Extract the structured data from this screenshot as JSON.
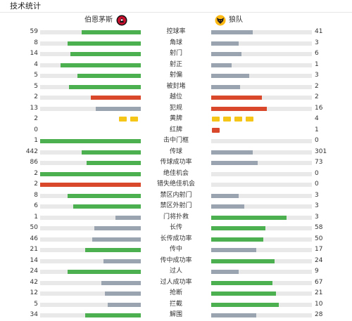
{
  "header": {
    "title": "技术统计"
  },
  "teams": {
    "home": {
      "name": "伯恩茅斯",
      "crest_icon": "bournemouth-crest"
    },
    "away": {
      "name": "狼队",
      "crest_icon": "wolves-crest"
    }
  },
  "colors": {
    "winner": "#4caf50",
    "loser": "#9aa4b1",
    "error": "#d9482b",
    "track": "#e9e9e9",
    "yellow_card": "#f5c518",
    "red_card": "#d9482b"
  },
  "stats": [
    {
      "label": "控球率",
      "home": "59",
      "away": "41",
      "home_frac": 0.59,
      "away_frac": 0.41,
      "home_color": "winner",
      "away_color": "loser"
    },
    {
      "label": "角球",
      "home": "8",
      "away": "3",
      "home_frac": 0.73,
      "away_frac": 0.27,
      "home_color": "winner",
      "away_color": "loser"
    },
    {
      "label": "射门",
      "home": "14",
      "away": "6",
      "home_frac": 0.7,
      "away_frac": 0.3,
      "home_color": "winner",
      "away_color": "loser"
    },
    {
      "label": "射正",
      "home": "4",
      "away": "1",
      "home_frac": 0.8,
      "away_frac": 0.2,
      "home_color": "winner",
      "away_color": "loser"
    },
    {
      "label": "射偏",
      "home": "5",
      "away": "3",
      "home_frac": 0.63,
      "away_frac": 0.38,
      "home_color": "winner",
      "away_color": "loser"
    },
    {
      "label": "被封堵",
      "home": "5",
      "away": "2",
      "home_frac": 0.71,
      "away_frac": 0.29,
      "home_color": "winner",
      "away_color": "loser"
    },
    {
      "label": "越位",
      "home": "2",
      "away": "2",
      "home_frac": 0.5,
      "away_frac": 0.5,
      "home_color": "error",
      "away_color": "error"
    },
    {
      "label": "犯规",
      "home": "13",
      "away": "16",
      "home_frac": 0.45,
      "away_frac": 0.55,
      "home_color": "loser",
      "away_color": "error"
    },
    {
      "label": "黄牌",
      "home": "2",
      "away": "4",
      "type": "yellow",
      "home_count": 2,
      "away_count": 4
    },
    {
      "label": "红牌",
      "home": "0",
      "away": "1",
      "type": "red",
      "home_count": 0,
      "away_count": 1
    },
    {
      "label": "击中门框",
      "home": "1",
      "away": "0",
      "home_frac": 1.0,
      "away_frac": 0.0,
      "home_color": "winner",
      "away_color": "loser"
    },
    {
      "label": "传球",
      "home": "442",
      "away": "301",
      "home_frac": 0.59,
      "away_frac": 0.41,
      "home_color": "winner",
      "away_color": "loser"
    },
    {
      "label": "传球成功率",
      "home": "86",
      "away": "73",
      "home_frac": 0.54,
      "away_frac": 0.46,
      "home_color": "winner",
      "away_color": "loser"
    },
    {
      "label": "绝佳机会",
      "home": "2",
      "away": "0",
      "home_frac": 1.0,
      "away_frac": 0.0,
      "home_color": "winner",
      "away_color": "loser"
    },
    {
      "label": "错失绝佳机会",
      "home": "2",
      "away": "0",
      "home_frac": 1.0,
      "away_frac": 0.0,
      "home_color": "error",
      "away_color": "loser"
    },
    {
      "label": "禁区内射门",
      "home": "8",
      "away": "3",
      "home_frac": 0.73,
      "away_frac": 0.27,
      "home_color": "winner",
      "away_color": "loser"
    },
    {
      "label": "禁区外射门",
      "home": "6",
      "away": "3",
      "home_frac": 0.67,
      "away_frac": 0.33,
      "home_color": "winner",
      "away_color": "loser"
    },
    {
      "label": "门将扑救",
      "home": "1",
      "away": "3",
      "home_frac": 0.25,
      "away_frac": 0.75,
      "home_color": "loser",
      "away_color": "winner"
    },
    {
      "label": "长传",
      "home": "50",
      "away": "58",
      "home_frac": 0.46,
      "away_frac": 0.54,
      "home_color": "loser",
      "away_color": "winner"
    },
    {
      "label": "长传成功率",
      "home": "46",
      "away": "50",
      "home_frac": 0.48,
      "away_frac": 0.52,
      "home_color": "loser",
      "away_color": "winner"
    },
    {
      "label": "传中",
      "home": "21",
      "away": "17",
      "home_frac": 0.55,
      "away_frac": 0.45,
      "home_color": "winner",
      "away_color": "loser"
    },
    {
      "label": "传中成功率",
      "home": "14",
      "away": "24",
      "home_frac": 0.37,
      "away_frac": 0.63,
      "home_color": "loser",
      "away_color": "winner"
    },
    {
      "label": "过人",
      "home": "24",
      "away": "9",
      "home_frac": 0.73,
      "away_frac": 0.27,
      "home_color": "winner",
      "away_color": "loser"
    },
    {
      "label": "过人成功率",
      "home": "42",
      "away": "67",
      "home_frac": 0.39,
      "away_frac": 0.61,
      "home_color": "loser",
      "away_color": "winner"
    },
    {
      "label": "抢断",
      "home": "12",
      "away": "21",
      "home_frac": 0.36,
      "away_frac": 0.64,
      "home_color": "loser",
      "away_color": "winner"
    },
    {
      "label": "拦截",
      "home": "5",
      "away": "10",
      "home_frac": 0.33,
      "away_frac": 0.67,
      "home_color": "loser",
      "away_color": "winner"
    },
    {
      "label": "解围",
      "home": "34",
      "away": "28",
      "home_frac": 0.55,
      "away_frac": 0.45,
      "home_color": "winner",
      "away_color": "loser"
    }
  ]
}
